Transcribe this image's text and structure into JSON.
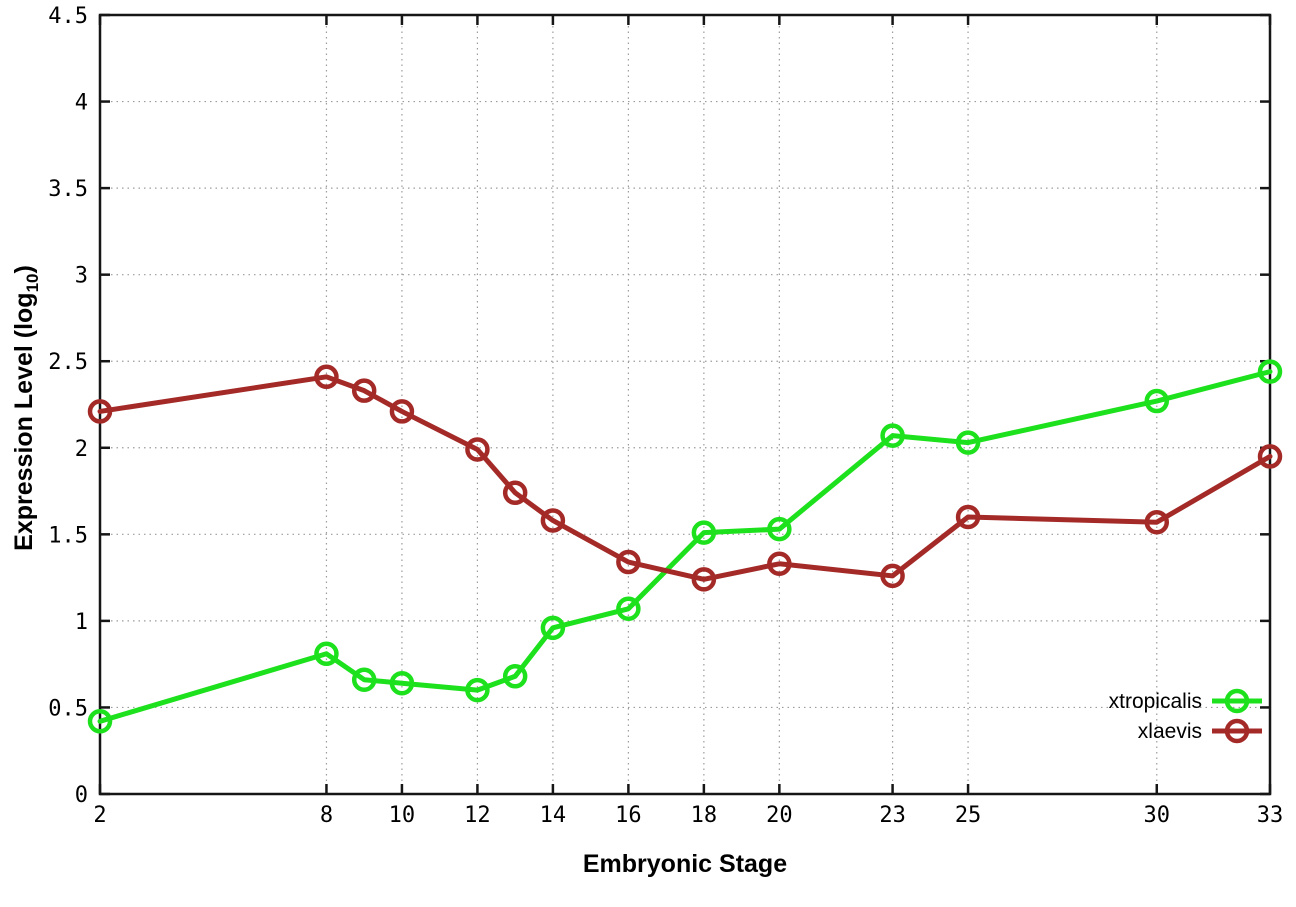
{
  "figure": {
    "background": "#ffffff",
    "border_color": "#161616",
    "grid_color": "#9c9c9c",
    "text_color": "#000000"
  },
  "chart_data": {
    "type": "line",
    "title": "",
    "xlabel": "Embryonic Stage",
    "ylabel": {
      "prefix": "Expression Level (log",
      "sub": "10",
      "suffix": ")"
    },
    "x": [
      2,
      8,
      9,
      10,
      12,
      13,
      14,
      16,
      18,
      20,
      23,
      25,
      30,
      33
    ],
    "xticks": [
      2,
      8,
      10,
      12,
      14,
      16,
      18,
      20,
      23,
      25,
      30,
      33
    ],
    "yticks": [
      0,
      0.5,
      1,
      1.5,
      2,
      2.5,
      3,
      3.5,
      4,
      4.5
    ],
    "xlim": [
      2,
      33
    ],
    "ylim": [
      0,
      4.5
    ],
    "grid": true,
    "legend_position": "inside-bottom-right",
    "series": [
      {
        "name": "xtropicalis",
        "color": "#1de11d",
        "values": [
          0.42,
          0.81,
          0.66,
          0.64,
          0.6,
          0.68,
          0.96,
          1.07,
          1.51,
          1.53,
          2.07,
          2.03,
          2.27,
          2.44
        ]
      },
      {
        "name": "xlaevis",
        "color": "#a42a28",
        "values": [
          2.21,
          2.41,
          2.33,
          2.21,
          1.99,
          1.74,
          1.58,
          1.34,
          1.24,
          1.33,
          1.26,
          1.6,
          1.57,
          1.95
        ]
      }
    ]
  }
}
